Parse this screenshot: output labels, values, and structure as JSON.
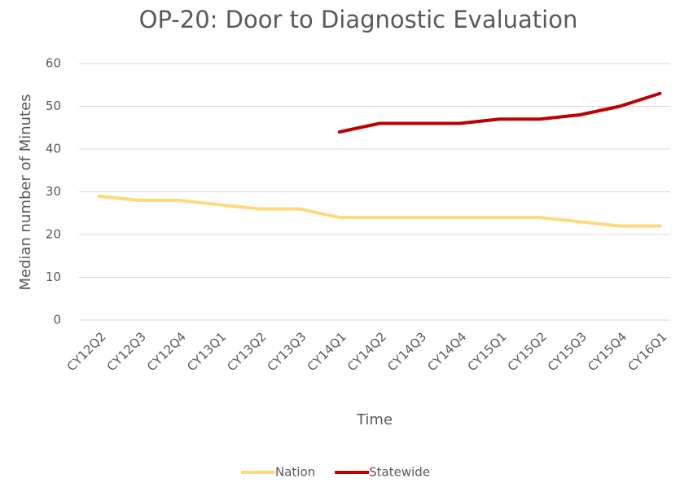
{
  "chart_data": {
    "type": "line",
    "title": "OP-20: Door to Diagnostic Evaluation",
    "x_label": "Time",
    "y_label": "Median number of Minutes",
    "categories": [
      "CY12Q2",
      "CY12Q3",
      "CY12Q4",
      "CY13Q1",
      "CY13Q2",
      "CY13Q3",
      "CY14Q1",
      "CY14Q2",
      "CY14Q3",
      "CY14Q4",
      "CY15Q1",
      "CY15Q2",
      "CY15Q3",
      "CY15Q4",
      "CY16Q1"
    ],
    "series": [
      {
        "name": "Nation",
        "color": "#ffd97a",
        "values": [
          29,
          28,
          28,
          27,
          26,
          26,
          24,
          24,
          24,
          24,
          24,
          24,
          23,
          22,
          22
        ]
      },
      {
        "name": "Statewide",
        "color": "#c00000",
        "values": [
          null,
          null,
          null,
          null,
          null,
          null,
          44,
          46,
          46,
          46,
          47,
          47,
          48,
          50,
          53
        ]
      }
    ],
    "ylim": [
      0,
      60
    ],
    "yticks": [
      0,
      10,
      20,
      30,
      40,
      50,
      60
    ],
    "grid": true,
    "legend": "bottom"
  }
}
